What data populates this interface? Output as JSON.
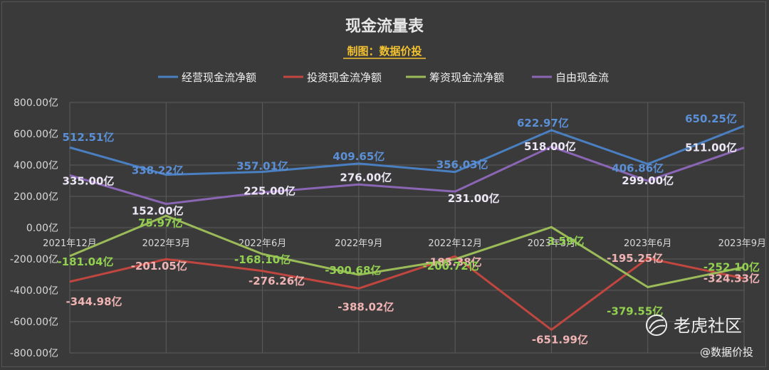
{
  "chart_data": {
    "type": "line",
    "title": "现金流量表",
    "subtitle": "制图：数据价投",
    "categories": [
      "2021年12月",
      "2022年3月",
      "2022年6月",
      "2022年9月",
      "2022年12月",
      "2023年3月",
      "2023年6月",
      "2023年9月"
    ],
    "y_ticks": [
      "800.00亿",
      "600.00亿",
      "400.00亿",
      "200.00亿",
      "0.00亿",
      "-200.00亿",
      "-400.00亿",
      "-600.00亿",
      "-800.00亿"
    ],
    "ylim": [
      -800,
      800
    ],
    "grid": true,
    "legend_position": "top",
    "series": [
      {
        "name": "经营现金流净额",
        "color": "#4a7fc1",
        "label_color": "#5b8fd6",
        "values": [
          512.51,
          338.22,
          357.01,
          409.65,
          356.03,
          622.97,
          406.86,
          650.25
        ],
        "labels": [
          "512.51亿",
          "338.22亿",
          "357.01亿",
          "409.65亿",
          "356.03亿",
          "622.97亿",
          "406.86亿",
          "650.25亿"
        ]
      },
      {
        "name": "投资现金流净额",
        "color": "#c0463f",
        "label_color": "#f0b3b3",
        "values": [
          -344.98,
          -201.05,
          -276.26,
          -388.02,
          -183.38,
          -651.99,
          -195.25,
          -324.33
        ],
        "labels": [
          "-344.98亿",
          "-201.05亿",
          "-276.26亿",
          "-388.02亿",
          "-183.38亿",
          "-651.99亿",
          "-195.25亿",
          "-324.33亿"
        ]
      },
      {
        "name": "筹资现金流净额",
        "color": "#9bbb59",
        "label_color": "#92d050",
        "values": [
          -181.04,
          75.97,
          -168.1,
          -300.68,
          -200.72,
          3.59,
          -379.55,
          -252.1
        ],
        "labels": [
          "-181.04亿",
          "75.97亿",
          "-168.10亿",
          "-300.68亿",
          "-200.72亿",
          "3.59亿",
          "-379.55亿",
          "-252.10亿"
        ]
      },
      {
        "name": "自由现金流",
        "color": "#8a66b5",
        "label_color": "#ece6f5",
        "values": [
          335.0,
          152.0,
          225.0,
          276.0,
          231.0,
          518.0,
          299.0,
          511.0
        ],
        "labels": [
          "335.00亿",
          "152.00亿",
          "225.00亿",
          "276.00亿",
          "231.00亿",
          "518.00亿",
          "299.00亿",
          "511.00亿"
        ]
      }
    ]
  },
  "watermark": {
    "brand": "老虎社区",
    "author": "@数据价投"
  }
}
